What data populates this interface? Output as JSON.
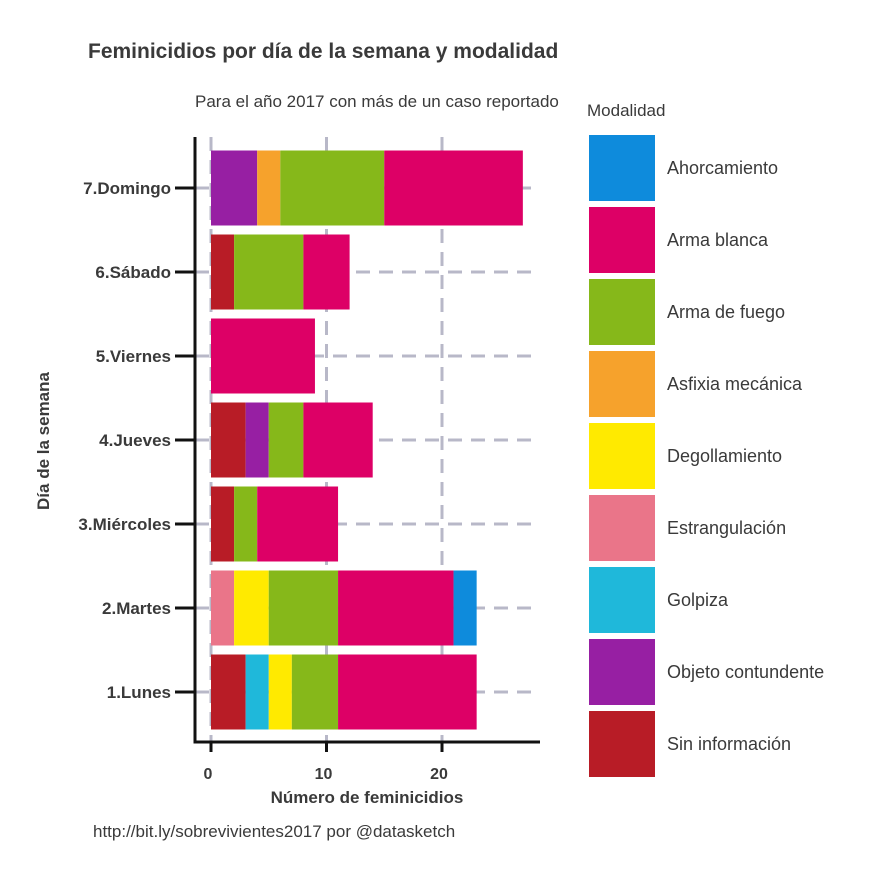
{
  "chart_data": {
    "type": "bar",
    "orientation": "horizontal",
    "stacked": true,
    "title": "Feminicidios por día de la semana y modalidad",
    "subtitle": "Para el año 2017 con más de un caso reportado",
    "caption": "http://bit.ly/sobrevivientes2017 por @datasketch",
    "xlabel": "Número de feminicidios",
    "ylabel": "Día de la semana",
    "xlim": [
      0,
      28
    ],
    "xticks": [
      0,
      10,
      20
    ],
    "xtick_labels": [
      "0",
      "10",
      "20"
    ],
    "grid": true,
    "legend_title": "Modalidad",
    "legend_position": "right",
    "categories": [
      "1.Lunes",
      "2.Martes",
      "3.Miércoles",
      "4.Jueves",
      "5.Viernes",
      "6.Sábado",
      "7.Domingo"
    ],
    "series": [
      {
        "name": "Sin información",
        "color": "#b81c26",
        "values": [
          3,
          0,
          2,
          3,
          0,
          2,
          0
        ]
      },
      {
        "name": "Objeto contundente",
        "color": "#971fa3",
        "values": [
          0,
          0,
          0,
          2,
          0,
          0,
          4
        ]
      },
      {
        "name": "Golpiza",
        "color": "#1fb8da",
        "values": [
          2,
          0,
          0,
          0,
          0,
          0,
          0
        ]
      },
      {
        "name": "Estrangulación",
        "color": "#ea7589",
        "values": [
          0,
          2,
          0,
          0,
          0,
          0,
          0
        ]
      },
      {
        "name": "Degollamiento",
        "color": "#ffea00",
        "values": [
          2,
          3,
          0,
          0,
          0,
          0,
          0
        ]
      },
      {
        "name": "Asfixia mecánica",
        "color": "#f6a22c",
        "values": [
          0,
          0,
          0,
          0,
          0,
          0,
          2
        ]
      },
      {
        "name": "Arma de fuego",
        "color": "#86b81a",
        "values": [
          4,
          6,
          2,
          3,
          0,
          6,
          9
        ]
      },
      {
        "name": "Arma blanca",
        "color": "#dd0066",
        "values": [
          12,
          10,
          7,
          6,
          9,
          4,
          12
        ]
      },
      {
        "name": "Ahorcamiento",
        "color": "#0e8bdc",
        "values": [
          0,
          2,
          0,
          0,
          0,
          0,
          0
        ]
      }
    ],
    "legend_order": [
      "Ahorcamiento",
      "Arma blanca",
      "Arma de fuego",
      "Asfixia mecánica",
      "Degollamiento",
      "Estrangulación",
      "Golpiza",
      "Objeto contundente",
      "Sin información"
    ]
  }
}
